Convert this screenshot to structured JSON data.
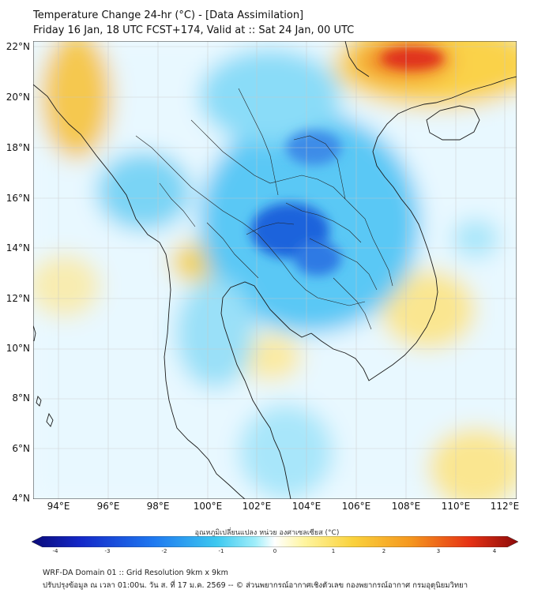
{
  "header": {
    "title_line1": "Temperature Change 24-hr (°C) - [Data Assimilation]",
    "title_line2": "Friday 16 Jan, 18 UTC FCST+174, Valid at :: Sat 24 Jan, 00 UTC"
  },
  "map": {
    "lat_labels": [
      "22°N",
      "20°N",
      "18°N",
      "16°N",
      "14°N",
      "12°N",
      "10°N",
      "8°N",
      "6°N",
      "4°N"
    ],
    "lon_labels": [
      "94°E",
      "96°E",
      "98°E",
      "100°E",
      "102°E",
      "104°E",
      "106°E",
      "108°E",
      "110°E",
      "112°E"
    ],
    "lat_range": [
      4,
      22
    ],
    "lon_range": [
      93,
      112.2
    ],
    "grid": true,
    "colors": {
      "strong_cool": "#1e64dc",
      "cool": "#3cb4f0",
      "light_cool": "#a8e6fa",
      "neutral": "#f0fcff",
      "warm": "#fae678",
      "hot": "#f08c28",
      "very_hot": "#e0321e",
      "coastline": "#1a1a1a"
    }
  },
  "colorbar": {
    "label": "อุณหภูมิเปลี่ยนแปลง หน่วย องศาเซลเซียส (°C)",
    "ticks": [
      "-4",
      "-3",
      "-2",
      "-1",
      "0",
      "1",
      "2",
      "3",
      "4"
    ],
    "range": [
      -4,
      4
    ],
    "stops": [
      "#0a0a78",
      "#1428c8",
      "#1e78f0",
      "#3cc8f0",
      "#a0eefa",
      "#ffffff",
      "#fff5a0",
      "#fad23c",
      "#f5961e",
      "#e63214",
      "#8c0a0a"
    ]
  },
  "footer": {
    "line1": "WRF-DA Domain 01 :: Grid Resolution 9km x 9km",
    "line2": "ปรับปรุงข้อมูล ณ เวลา 01:00น. วัน ส. ที่ 17 ม.ค. 2569 -- © ส่วนพยากรณ์อากาศเชิงตัวเลข กองพยากรณ์อากาศ กรมอุตุนิยมวิทยา"
  }
}
